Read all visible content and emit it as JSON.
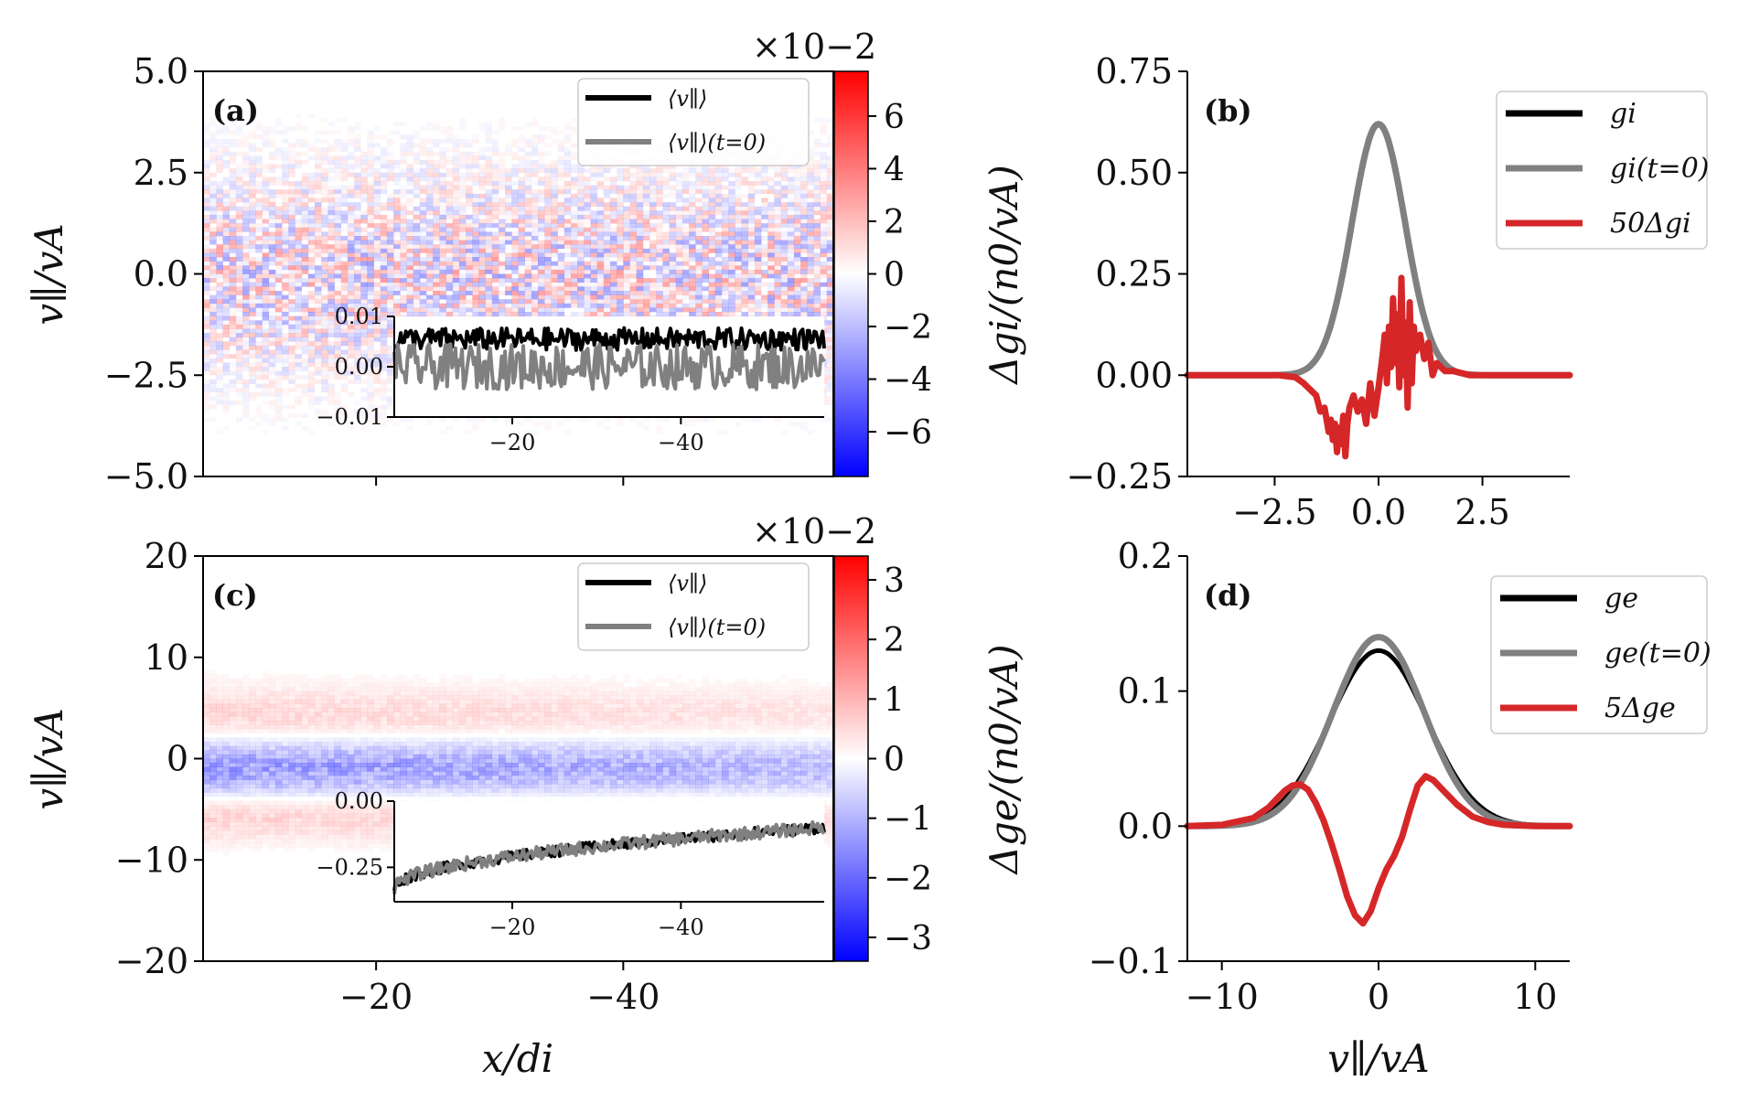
{
  "chart_data": [
    {
      "id": "a",
      "type": "heatmap",
      "panel_label": "(a)",
      "ylabel": "v∥/vA",
      "xlabel": "",
      "x_range": [
        -6,
        -57
      ],
      "ylim": [
        -5.0,
        5.0
      ],
      "yticks": [
        5.0,
        2.5,
        0.0,
        -2.5,
        -5.0
      ],
      "ytick_labels": [
        "5.0",
        "2.5",
        "0.0",
        "−2.5",
        "−5.0"
      ],
      "xticks": [
        -20,
        -40
      ],
      "colorbar": {
        "label": "Δgi/(n0/vA)",
        "range": [
          -7.7,
          7.7
        ],
        "ticks": [
          6,
          4,
          2,
          0,
          -2,
          -4,
          -6
        ],
        "tick_labels": [
          "6",
          "4",
          "2",
          "0",
          "−2",
          "−4",
          "−6"
        ],
        "exponent_label": "×10−2",
        "colormap": [
          "#0000ff",
          "#ffffff",
          "#ff0000"
        ]
      },
      "band_halfwidth": 1.7,
      "legend": {
        "placement": "top-right",
        "entries": [
          {
            "label": "⟨v∥⟩",
            "color": "#000000"
          },
          {
            "label": "⟨v∥⟩(t=0)",
            "color": "#808080"
          }
        ]
      },
      "inset": {
        "xlim": [
          -6,
          -57
        ],
        "xticks": [
          -20,
          -40
        ],
        "xtick_labels": [
          "−20",
          "−40"
        ],
        "ylim": [
          -0.01,
          0.01
        ],
        "yticks": [
          0.01,
          0.0,
          -0.01
        ],
        "ytick_labels": [
          "0.01",
          "0.00",
          "−0.01"
        ],
        "series": [
          {
            "name": "⟨v∥⟩",
            "color": "#000000",
            "mean": 0.0055,
            "spread": 0.0022
          },
          {
            "name": "⟨v∥⟩(t=0)",
            "color": "#808080",
            "mean": 0.0,
            "spread": 0.0045
          }
        ]
      }
    },
    {
      "id": "b",
      "type": "line",
      "panel_label": "(b)",
      "xlim": [
        -4.6,
        4.6
      ],
      "ylim": [
        -0.25,
        0.75
      ],
      "xticks": [
        -2.5,
        0.0,
        2.5
      ],
      "xtick_labels": [
        "−2.5",
        "0.0",
        "2.5"
      ],
      "yticks": [
        0.75,
        0.5,
        0.25,
        0.0,
        -0.25
      ],
      "ytick_labels": [
        "0.75",
        "0.50",
        "0.25",
        "0.00",
        "−0.25"
      ],
      "legend": {
        "placement": "top-right"
      },
      "series": [
        {
          "name": "gi",
          "color": "#000000",
          "amplitude": 0.62,
          "sigma": 0.64
        },
        {
          "name": "gi(t=0)",
          "color": "#808080",
          "amplitude": 0.62,
          "sigma": 0.64
        },
        {
          "name": "50Δgi",
          "color": "#d62728",
          "x": [
            -4.6,
            -2.4,
            -2.0,
            -1.8,
            -1.6,
            -1.5,
            -1.4,
            -1.3,
            -1.2,
            -1.15,
            -1.1,
            -1.05,
            -1.0,
            -0.95,
            -0.9,
            -0.85,
            -0.8,
            -0.75,
            -0.7,
            -0.6,
            -0.5,
            -0.4,
            -0.3,
            -0.2,
            -0.1,
            0.0,
            0.1,
            0.15,
            0.2,
            0.25,
            0.3,
            0.35,
            0.4,
            0.45,
            0.5,
            0.55,
            0.6,
            0.65,
            0.7,
            0.75,
            0.8,
            0.85,
            0.9,
            1.0,
            1.1,
            1.2,
            1.3,
            1.4,
            1.6,
            1.8,
            2.0,
            2.2,
            4.6
          ],
          "y": [
            0.0,
            0.0,
            -0.005,
            -0.02,
            -0.04,
            -0.05,
            -0.09,
            -0.08,
            -0.14,
            -0.11,
            -0.16,
            -0.12,
            -0.19,
            -0.13,
            -0.17,
            -0.1,
            -0.2,
            -0.12,
            -0.08,
            -0.05,
            -0.09,
            -0.06,
            -0.12,
            -0.02,
            -0.1,
            -0.03,
            0.05,
            0.1,
            -0.02,
            0.12,
            0.02,
            0.19,
            0.03,
            0.15,
            -0.03,
            0.24,
            0.0,
            0.13,
            -0.08,
            0.18,
            -0.02,
            0.12,
            0.06,
            0.1,
            0.04,
            0.08,
            0.0,
            0.03,
            0.01,
            0.01,
            0.005,
            0.0,
            0.0
          ]
        }
      ]
    },
    {
      "id": "c",
      "type": "heatmap",
      "panel_label": "(c)",
      "ylabel": "v∥/vA",
      "xlabel": "x/di",
      "x_range": [
        -6,
        -57
      ],
      "ylim": [
        -20,
        20
      ],
      "yticks": [
        20,
        10,
        0,
        -10,
        -20
      ],
      "ytick_labels": [
        "20",
        "10",
        "0",
        "−10",
        "−20"
      ],
      "xticks": [
        -20,
        -40
      ],
      "xtick_labels": [
        "−20",
        "−40"
      ],
      "colorbar": {
        "label": "Δge/(n0/vA)",
        "range": [
          -3.4,
          3.4
        ],
        "ticks": [
          3,
          2,
          1,
          0,
          -1,
          -2,
          -3
        ],
        "tick_labels": [
          "3",
          "2",
          "1",
          "0",
          "−1",
          "−2",
          "−3"
        ],
        "exponent_label": "×10−2",
        "colormap": [
          "#0000ff",
          "#ffffff",
          "#ff0000"
        ]
      },
      "bands": [
        {
          "v": 3.0,
          "width": 2.5,
          "sign": 1
        },
        {
          "v": -0.8,
          "width": 2.6,
          "sign": -1
        },
        {
          "v": -5.0,
          "width": 2.0,
          "sign": 1
        }
      ],
      "legend": {
        "placement": "top-right",
        "entries": [
          {
            "label": "⟨v∥⟩",
            "color": "#000000"
          },
          {
            "label": "⟨v∥⟩(t=0)",
            "color": "#808080"
          }
        ]
      },
      "inset": {
        "xlim": [
          -6,
          -57
        ],
        "xticks": [
          -20,
          -40
        ],
        "xtick_labels": [
          "−20",
          "−40"
        ],
        "ylim": [
          -0.38,
          0.0
        ],
        "yticks": [
          0.0,
          -0.25
        ],
        "ytick_labels": [
          "0.00",
          "−0.25"
        ],
        "series": [
          {
            "name": "⟨v∥⟩",
            "color": "#000000",
            "start": -0.33,
            "end": -0.1,
            "spread": 0.02
          },
          {
            "name": "⟨v∥⟩(t=0)",
            "color": "#808080",
            "start": -0.33,
            "end": -0.1,
            "spread": 0.025
          }
        ]
      }
    },
    {
      "id": "d",
      "type": "line",
      "panel_label": "(d)",
      "xlabel": "v∥/vA",
      "xlim": [
        -12.2,
        12.2
      ],
      "ylim": [
        -0.1,
        0.2
      ],
      "xticks": [
        -10,
        0,
        10
      ],
      "xtick_labels": [
        "−10",
        "0",
        "10"
      ],
      "yticks": [
        0.2,
        0.1,
        0.0,
        -0.1
      ],
      "ytick_labels": [
        "0.2",
        "0.1",
        "0.0",
        "−0.1"
      ],
      "legend": {
        "placement": "top-right"
      },
      "series": [
        {
          "name": "ge",
          "color": "#000000",
          "amplitude": 0.13,
          "sigma": 3.1
        },
        {
          "name": "ge(t=0)",
          "color": "#808080",
          "amplitude": 0.14,
          "sigma": 2.9
        },
        {
          "name": "5Δge",
          "color": "#d62728",
          "x": [
            -12.2,
            -10,
            -8,
            -7,
            -6,
            -5.5,
            -5.0,
            -4.5,
            -4.0,
            -3.5,
            -3.0,
            -2.5,
            -2.0,
            -1.5,
            -1.0,
            -0.5,
            0.0,
            0.5,
            1.0,
            1.5,
            2.0,
            2.5,
            3.0,
            3.5,
            4.0,
            5.0,
            6.0,
            7.0,
            8.0,
            10.0,
            12.2
          ],
          "y": [
            0.0,
            0.001,
            0.006,
            0.014,
            0.026,
            0.03,
            0.031,
            0.027,
            0.017,
            0.004,
            -0.013,
            -0.032,
            -0.052,
            -0.066,
            -0.072,
            -0.063,
            -0.046,
            -0.032,
            -0.022,
            -0.008,
            0.012,
            0.03,
            0.037,
            0.034,
            0.028,
            0.016,
            0.007,
            0.003,
            0.001,
            0.0,
            0.0
          ]
        }
      ]
    }
  ]
}
